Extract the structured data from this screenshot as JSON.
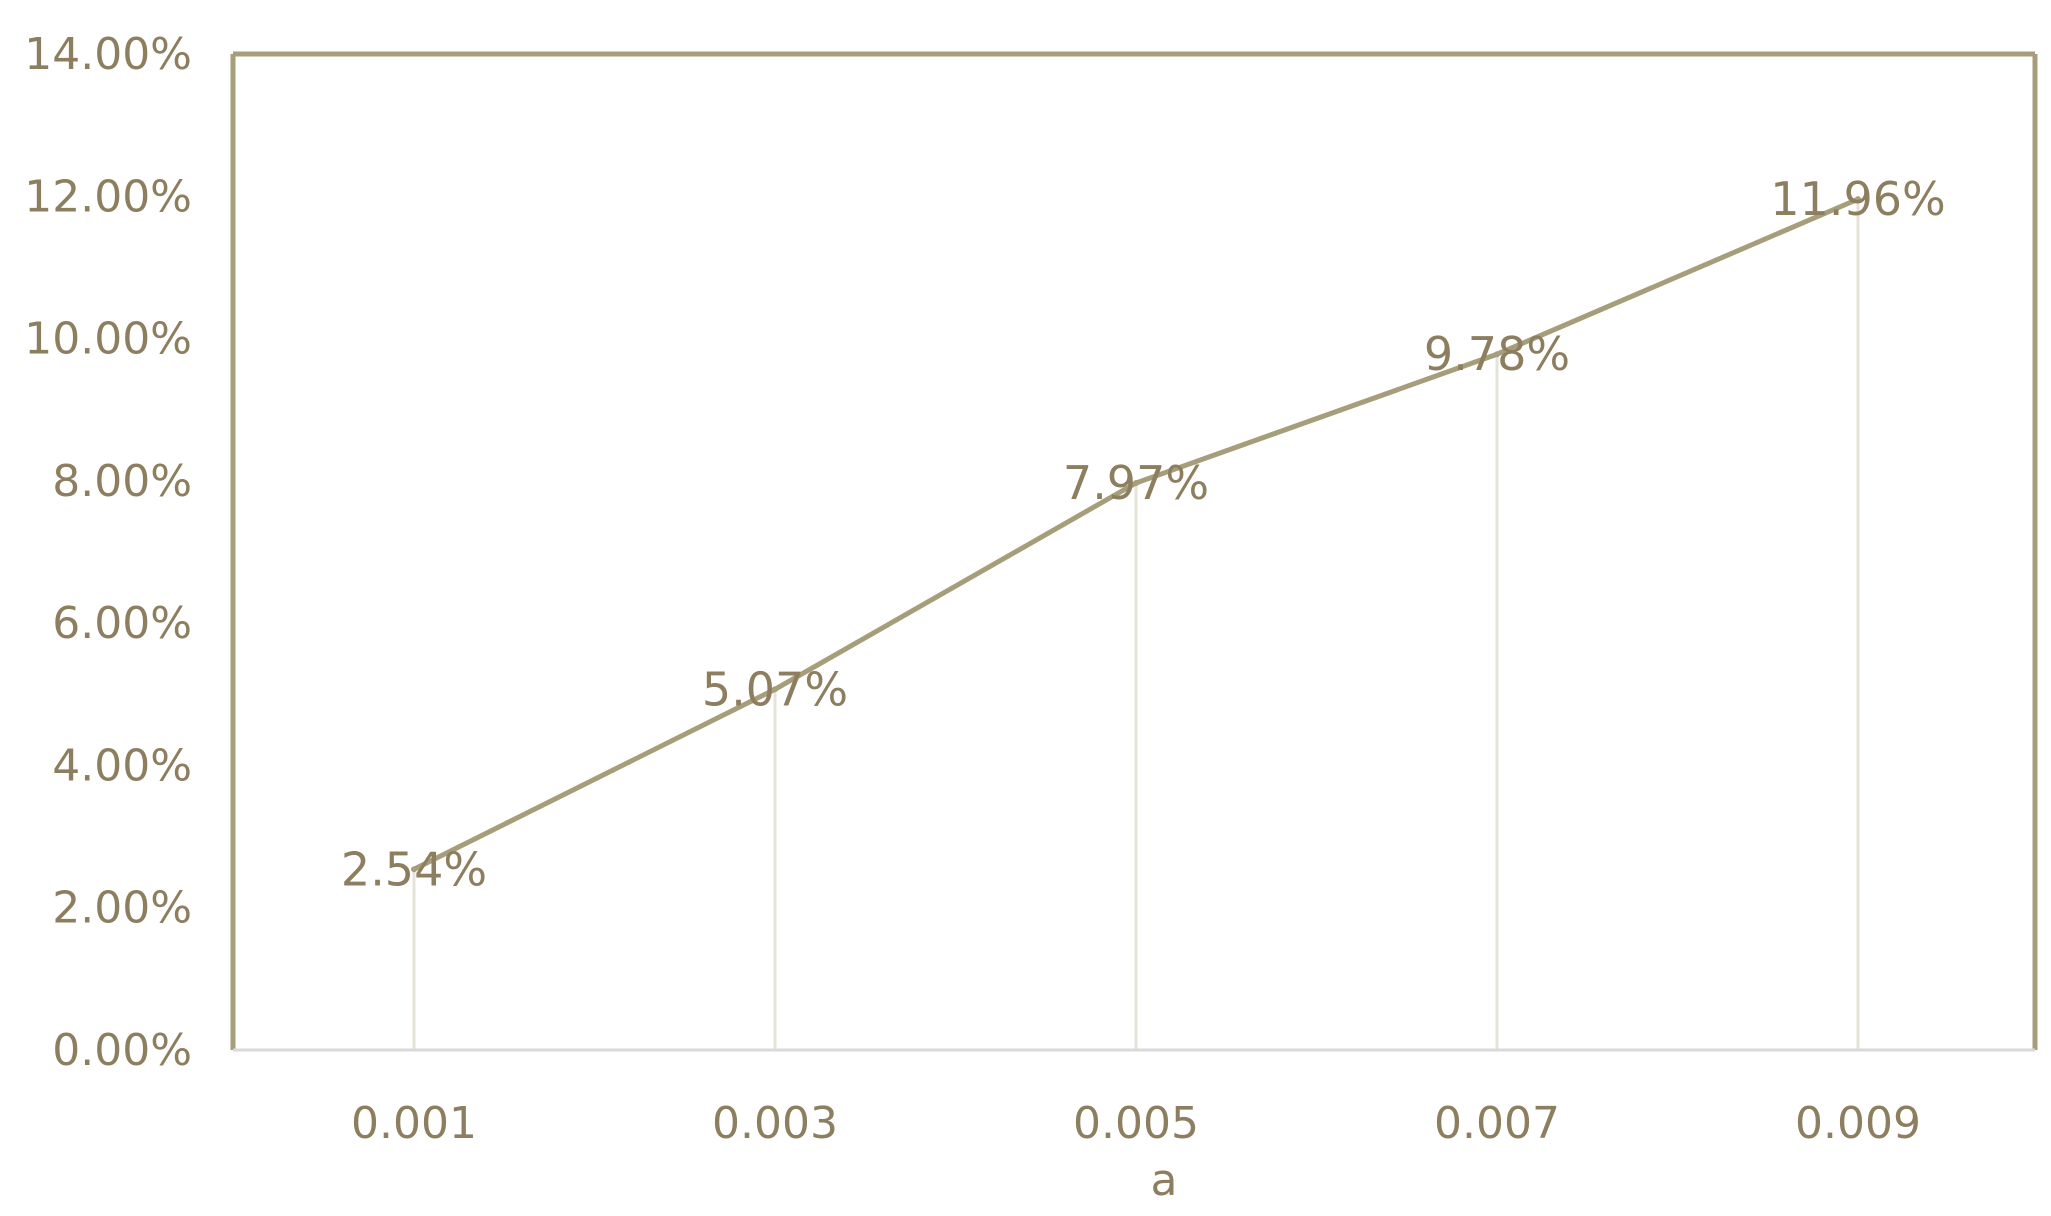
{
  "chart_data": {
    "type": "line",
    "title": "",
    "xlabel": "a",
    "ylabel": "",
    "categories": [
      "0.001",
      "0.003",
      "0.005",
      "0.007",
      "0.009"
    ],
    "series": [
      {
        "values": [
          2.54,
          5.07,
          7.97,
          9.78,
          11.96
        ],
        "data_labels": [
          "2.54%",
          "5.07%",
          "7.97%",
          "9.78%",
          "11.96%"
        ]
      }
    ],
    "ylim": [
      0,
      14
    ],
    "y_ticks": [
      0,
      2,
      4,
      6,
      8,
      10,
      12,
      14
    ],
    "y_tick_labels": [
      "0.00%",
      "2.00%",
      "4.00%",
      "6.00%",
      "8.00%",
      "10.00%",
      "12.00%",
      "14.00%"
    ],
    "drop_lines": true,
    "grid": false,
    "legend": "none",
    "colors": {
      "line": "#a69e7a",
      "frame": "#a69e7a",
      "drop_line": "#e6e3d9",
      "text": "#8c7e5e"
    }
  }
}
